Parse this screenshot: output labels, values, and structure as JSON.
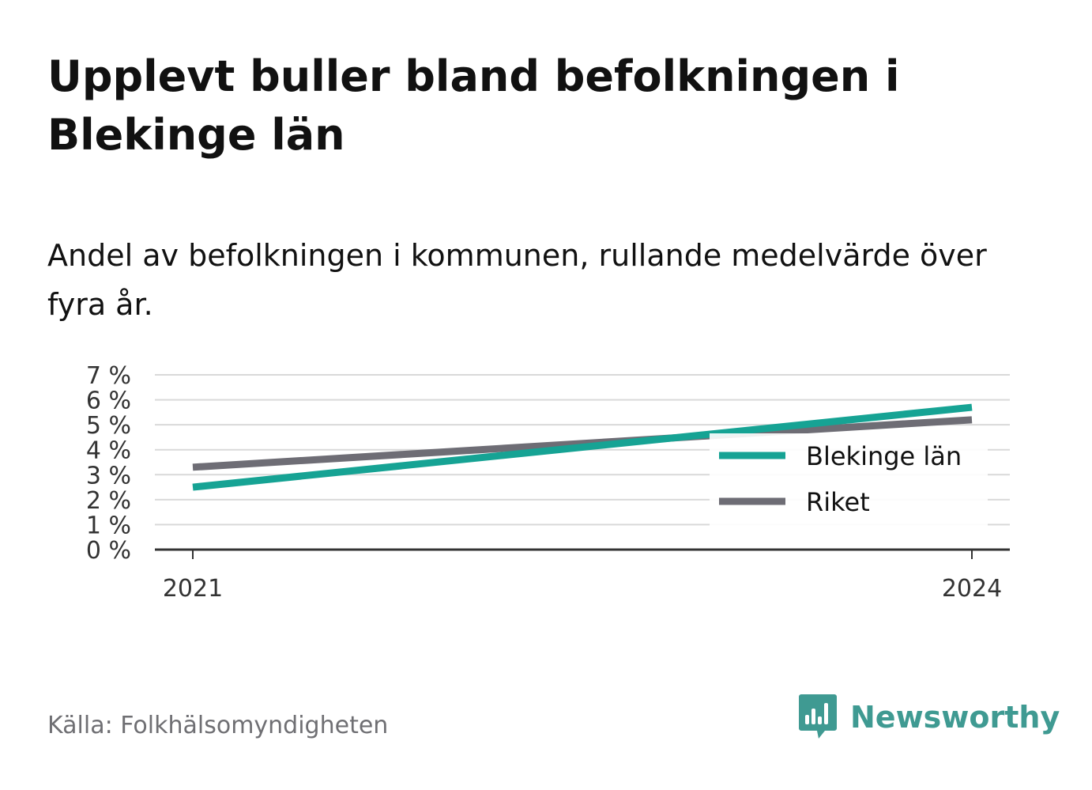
{
  "header": {
    "title": "Upplevt buller bland befolkningen i Blekinge län",
    "subtitle": "Andel av befolkningen i kommunen, rullande medelvärde över fyra år."
  },
  "chart_data": {
    "type": "line",
    "x": [
      2021,
      2024
    ],
    "x_tick_labels": [
      "2021",
      "2024"
    ],
    "series": [
      {
        "name": "Blekinge län",
        "color": "#16a394",
        "values": [
          2.5,
          5.7
        ]
      },
      {
        "name": "Riket",
        "color": "#6e6d75",
        "values": [
          3.3,
          5.2
        ]
      }
    ],
    "ylim": [
      0,
      7
    ],
    "y_ticks": [
      0,
      1,
      2,
      3,
      4,
      5,
      6,
      7
    ],
    "y_tick_labels": [
      "0 %",
      "1 %",
      "2 %",
      "3 %",
      "4 %",
      "5 %",
      "6 %",
      "7 %"
    ],
    "grid": true,
    "legend_position": "bottom-right"
  },
  "footer": {
    "source": "Källa: Folkhälsomyndigheten",
    "brand": "Newsworthy",
    "brand_color": "#3f9a92"
  }
}
